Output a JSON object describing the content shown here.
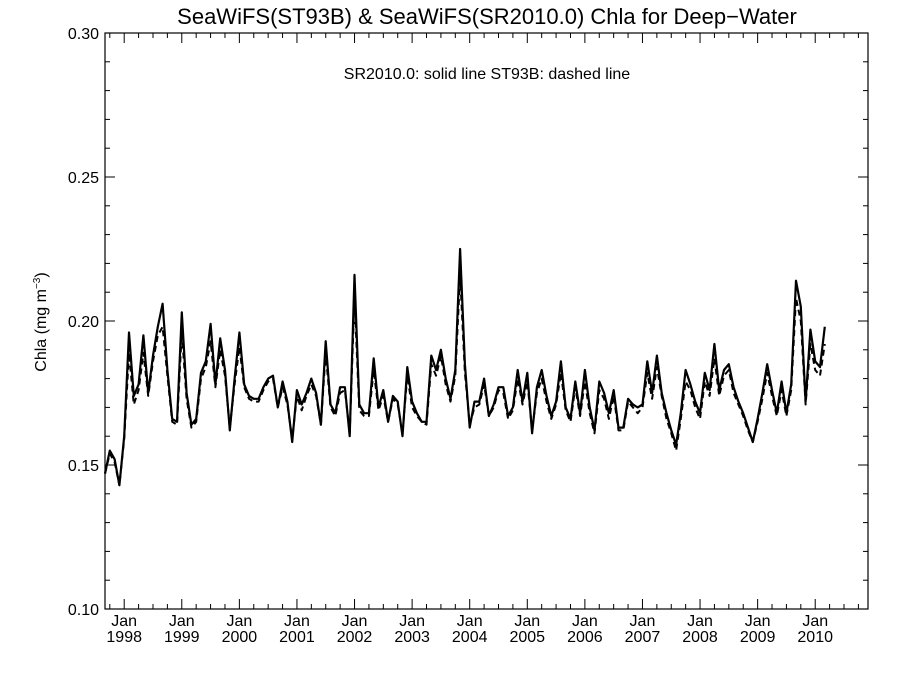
{
  "chart_data": {
    "type": "line",
    "title": "SeaWiFS(ST93B) & SeaWiFS(SR2010.0)  Chla for Deep−Water",
    "annotation": "SR2010.0: solid line   ST93B: dashed line",
    "ylabel": "Chla (mg m",
    "ylabel_sup": "−3",
    "ylabel_close": ")",
    "ylim": [
      0.1,
      0.3
    ],
    "yticks": [
      "0.10",
      "0.15",
      "0.20",
      "0.25",
      "0.30"
    ],
    "xticks": [
      {
        "month": "Jan",
        "year": "1998"
      },
      {
        "month": "Jan",
        "year": "1999"
      },
      {
        "month": "Jan",
        "year": "2000"
      },
      {
        "month": "Jan",
        "year": "2001"
      },
      {
        "month": "Jan",
        "year": "2002"
      },
      {
        "month": "Jan",
        "year": "2003"
      },
      {
        "month": "Jan",
        "year": "2004"
      },
      {
        "month": "Jan",
        "year": "2005"
      },
      {
        "month": "Jan",
        "year": "2006"
      },
      {
        "month": "Jan",
        "year": "2007"
      },
      {
        "month": "Jan",
        "year": "2008"
      },
      {
        "month": "Jan",
        "year": "2009"
      },
      {
        "month": "Jan",
        "year": "2010"
      }
    ],
    "x_start": "1997-09",
    "x_end": "2010-12",
    "series": [
      {
        "name": "SR2010.0",
        "style": "solid",
        "color": "#000000",
        "values": [
          0.147,
          0.155,
          0.152,
          0.143,
          0.16,
          0.196,
          0.174,
          0.178,
          0.195,
          0.175,
          0.188,
          0.198,
          0.206,
          0.183,
          0.166,
          0.165,
          0.203,
          0.175,
          0.164,
          0.166,
          0.182,
          0.186,
          0.199,
          0.178,
          0.194,
          0.183,
          0.162,
          0.18,
          0.196,
          0.178,
          0.174,
          0.173,
          0.173,
          0.177,
          0.18,
          0.181,
          0.17,
          0.179,
          0.172,
          0.158,
          0.176,
          0.171,
          0.175,
          0.18,
          0.175,
          0.164,
          0.193,
          0.171,
          0.168,
          0.177,
          0.177,
          0.16,
          0.216,
          0.171,
          0.168,
          0.168,
          0.187,
          0.17,
          0.176,
          0.165,
          0.174,
          0.172,
          0.16,
          0.184,
          0.172,
          0.168,
          0.165,
          0.165,
          0.188,
          0.183,
          0.19,
          0.18,
          0.173,
          0.183,
          0.225,
          0.185,
          0.163,
          0.172,
          0.172,
          0.18,
          0.167,
          0.171,
          0.177,
          0.177,
          0.167,
          0.17,
          0.183,
          0.172,
          0.182,
          0.161,
          0.177,
          0.183,
          0.174,
          0.167,
          0.172,
          0.186,
          0.17,
          0.166,
          0.179,
          0.168,
          0.183,
          0.17,
          0.162,
          0.179,
          0.175,
          0.168,
          0.176,
          0.163,
          0.163,
          0.173,
          0.171,
          0.17,
          0.171,
          0.186,
          0.175,
          0.188,
          0.175,
          0.168,
          0.162,
          0.157,
          0.168,
          0.183,
          0.178,
          0.172,
          0.168,
          0.182,
          0.176,
          0.192,
          0.176,
          0.183,
          0.185,
          0.177,
          0.172,
          0.168,
          0.163,
          0.158,
          0.166,
          0.175,
          0.185,
          0.176,
          0.168,
          0.179,
          0.168,
          0.178,
          0.214,
          0.205,
          0.172,
          0.197,
          0.186,
          0.184,
          0.198
        ]
      },
      {
        "name": "ST93B",
        "style": "dashed",
        "color": "#000000",
        "values": [
          0.147,
          0.154,
          0.151,
          0.143,
          0.159,
          0.189,
          0.171,
          0.176,
          0.189,
          0.174,
          0.186,
          0.195,
          0.198,
          0.181,
          0.165,
          0.164,
          0.196,
          0.173,
          0.163,
          0.165,
          0.18,
          0.184,
          0.193,
          0.177,
          0.19,
          0.181,
          0.163,
          0.178,
          0.191,
          0.177,
          0.173,
          0.172,
          0.172,
          0.176,
          0.179,
          0.18,
          0.17,
          0.177,
          0.171,
          0.159,
          0.174,
          0.169,
          0.174,
          0.178,
          0.174,
          0.164,
          0.189,
          0.17,
          0.167,
          0.175,
          0.176,
          0.161,
          0.208,
          0.169,
          0.167,
          0.167,
          0.183,
          0.169,
          0.174,
          0.165,
          0.173,
          0.171,
          0.161,
          0.181,
          0.17,
          0.167,
          0.165,
          0.164,
          0.185,
          0.181,
          0.188,
          0.178,
          0.172,
          0.181,
          0.216,
          0.182,
          0.164,
          0.17,
          0.171,
          0.178,
          0.167,
          0.17,
          0.176,
          0.175,
          0.166,
          0.169,
          0.18,
          0.171,
          0.179,
          0.162,
          0.175,
          0.18,
          0.172,
          0.166,
          0.171,
          0.182,
          0.169,
          0.165,
          0.177,
          0.167,
          0.179,
          0.168,
          0.161,
          0.176,
          0.173,
          0.166,
          0.174,
          0.162,
          0.162,
          0.172,
          0.17,
          0.168,
          0.17,
          0.182,
          0.173,
          0.184,
          0.174,
          0.166,
          0.161,
          0.155,
          0.166,
          0.179,
          0.176,
          0.17,
          0.166,
          0.179,
          0.174,
          0.187,
          0.174,
          0.181,
          0.183,
          0.175,
          0.171,
          0.167,
          0.162,
          0.158,
          0.165,
          0.173,
          0.182,
          0.174,
          0.167,
          0.176,
          0.167,
          0.176,
          0.208,
          0.2,
          0.171,
          0.192,
          0.183,
          0.181,
          0.192
        ]
      }
    ],
    "grid": false,
    "legend": "none"
  }
}
